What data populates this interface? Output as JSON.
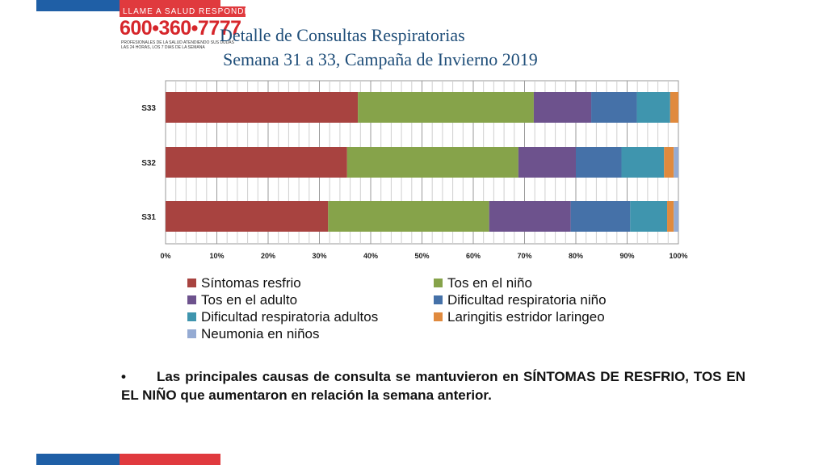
{
  "colors": {
    "stripe_blue": "#1f5fa6",
    "stripe_red": "#e03a3e",
    "title_color": "#1f4e79"
  },
  "logo": {
    "banner": "LLAME A SALUD RESPONDE",
    "phone": "600•360•7777",
    "tagline": "PROFESIONALES DE LA SALUD ATENDIENDO SUS DUDAS LAS 24 HORAS, LOS 7 DIAS DE LA SEMANA"
  },
  "title_line1": "Detalle de Consultas Respiratorias",
  "title_line2": "Semana 31 a 33, Campaña de Invierno 2019",
  "chart_data": {
    "type": "bar",
    "orientation": "horizontal",
    "stacked": "percent",
    "categories": [
      "S33",
      "S32",
      "S31"
    ],
    "series": [
      {
        "name": "Síntomas resfrio",
        "color": "#a84340",
        "values": [
          37.5,
          35.4,
          31.7
        ]
      },
      {
        "name": "Tos en el niño",
        "color": "#86a34a",
        "values": [
          34.3,
          33.4,
          31.4
        ]
      },
      {
        "name": "Tos en el adulto",
        "color": "#6d528d",
        "values": [
          11.2,
          11.2,
          15.9
        ]
      },
      {
        "name": "Dificultad respiratoria niño",
        "color": "#4571a8",
        "values": [
          8.9,
          8.9,
          11.6
        ]
      },
      {
        "name": "Dificultad respiratoria adultos",
        "color": "#3f95ae",
        "values": [
          6.5,
          8.3,
          7.2
        ]
      },
      {
        "name": "Laringitis estridor laringeo",
        "color": "#e08a3e",
        "values": [
          1.6,
          1.9,
          1.3
        ]
      },
      {
        "name": "Neumonia en niños",
        "color": "#95abd3",
        "values": [
          0.0,
          0.9,
          0.9
        ]
      }
    ],
    "xticks": [
      "0%",
      "10%",
      "20%",
      "30%",
      "40%",
      "50%",
      "60%",
      "70%",
      "80%",
      "90%",
      "100%"
    ],
    "xlim": [
      0,
      100
    ],
    "grid": true,
    "legend_position": "bottom"
  },
  "bullet": {
    "marker": "•",
    "text": "Las principales causas de consulta se mantuvieron en SÍNTOMAS DE RESFRIO, TOS EN EL NIÑO que aumentaron en relación la semana anterior."
  }
}
